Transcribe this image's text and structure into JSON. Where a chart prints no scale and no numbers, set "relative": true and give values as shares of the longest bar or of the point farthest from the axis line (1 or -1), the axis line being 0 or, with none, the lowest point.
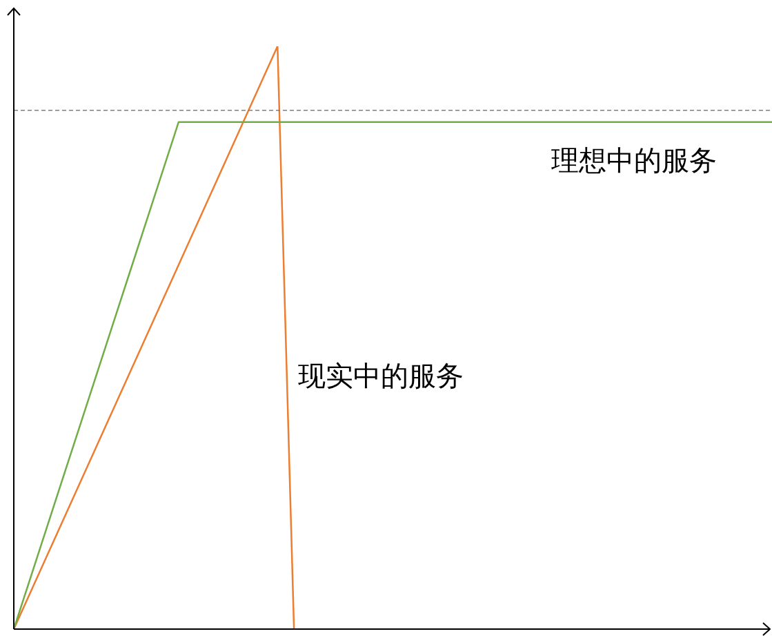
{
  "chart_data": {
    "type": "line",
    "relative": true,
    "marker": "none",
    "line_style": "solid",
    "categories": [
      null,
      null,
      null,
      null,
      null,
      null,
      null,
      null,
      null,
      null,
      null,
      null,
      null,
      null,
      null,
      null,
      null,
      null,
      null,
      null,
      null,
      null,
      null,
      null,
      null,
      null,
      null,
      null,
      null,
      null,
      null,
      null,
      null,
      null,
      null,
      null,
      null,
      null,
      null,
      null,
      null,
      null,
      null,
      null,
      null,
      null,
      null
    ],
    "series": [
      {
        "name": "理想中的服务",
        "color": "#70ad47",
        "values": [
          0,
          0.087,
          0.174,
          0.261,
          0.348,
          0.435,
          0.522,
          0.609,
          0.696,
          0.783,
          0.87,
          0.87,
          0.87,
          0.87,
          0.87,
          0.87,
          0.87,
          0.87,
          0.87,
          0.87,
          0.87,
          0.87,
          0.87,
          0.87,
          0.87,
          0.87,
          0.87,
          0.87,
          0.87,
          0.87,
          0.87,
          0.87,
          0.87,
          0.87,
          0.87,
          0.87,
          0.87,
          0.87,
          0.87,
          0.87,
          0.87,
          0.87,
          0.87,
          0.87,
          0.87,
          0.87,
          0.87
        ]
      },
      {
        "name": "现实中的服务",
        "color": "#ed7d31",
        "values": [
          0,
          0.0625,
          0.125,
          0.1875,
          0.25,
          0.3125,
          0.375,
          0.4375,
          0.5,
          0.5625,
          0.625,
          0.6875,
          0.75,
          0.8125,
          0.875,
          0.9375,
          1,
          0,
          null,
          null,
          null,
          null,
          null,
          null,
          null,
          null,
          null,
          null,
          null,
          null,
          null,
          null,
          null,
          null,
          null,
          null,
          null,
          null,
          null,
          null,
          null,
          null,
          null,
          null,
          null,
          null,
          null
        ]
      }
    ],
    "ref_lines": [
      {
        "axis": "y",
        "value": 0.89,
        "color": "#7f7f7f",
        "line_style": "dashed"
      }
    ]
  }
}
